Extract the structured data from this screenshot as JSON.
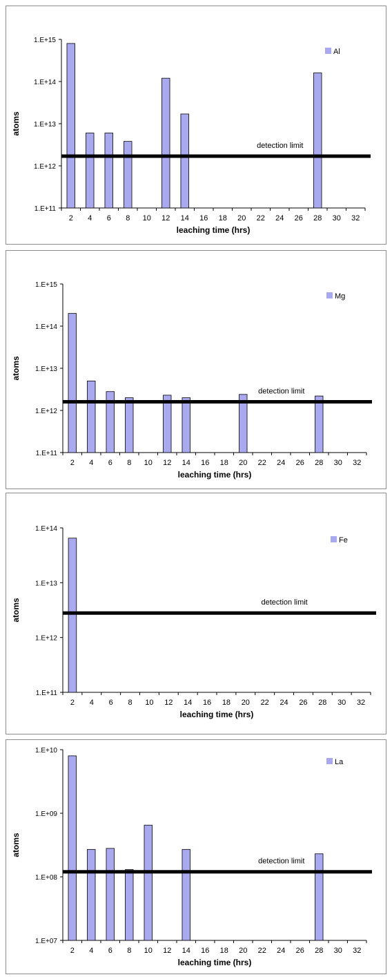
{
  "colors": {
    "bar_fill": "#a9a9f0",
    "bar_stroke": "#000000",
    "limit_line": "#000000",
    "frame": "#8c8c8c"
  },
  "chart_data": [
    {
      "type": "bar",
      "xlabel": "leaching time (hrs)",
      "ylabel": "atoms",
      "yscale": "log",
      "ylim": [
        100000000000.0,
        1000000000000000.0
      ],
      "yticks": [
        "1.E+11",
        "1.E+12",
        "1.E+13",
        "1.E+14",
        "1.E+15"
      ],
      "categories": [
        "2",
        "4",
        "6",
        "8",
        "10",
        "12",
        "14",
        "16",
        "18",
        "20",
        "22",
        "24",
        "26",
        "28",
        "30",
        "32"
      ],
      "series": [
        {
          "name": "Al",
          "values": [
            800000000000000.0,
            6000000000000.0,
            6000000000000.0,
            3800000000000.0,
            null,
            120000000000000.0,
            17000000000000.0,
            null,
            null,
            null,
            null,
            null,
            null,
            160000000000000.0,
            null,
            null
          ]
        }
      ],
      "detection_limit": {
        "label": "detection limit",
        "value": 1700000000000.0
      },
      "legend": "top-right",
      "grid": false
    },
    {
      "type": "bar",
      "xlabel": "leaching time (hrs)",
      "ylabel": "atoms",
      "yscale": "log",
      "ylim": [
        100000000000.0,
        1000000000000000.0
      ],
      "yticks": [
        "1.E+11",
        "1.E+12",
        "1.E+13",
        "1.E+14",
        "1.E+15"
      ],
      "categories": [
        "2",
        "4",
        "6",
        "8",
        "10",
        "12",
        "14",
        "16",
        "18",
        "20",
        "22",
        "24",
        "26",
        "28",
        "30",
        "32"
      ],
      "series": [
        {
          "name": "Mg",
          "values": [
            200000000000000.0,
            5000000000000.0,
            2800000000000.0,
            2000000000000.0,
            null,
            2300000000000.0,
            2000000000000.0,
            null,
            null,
            2400000000000.0,
            null,
            null,
            null,
            2200000000000.0,
            null,
            null
          ]
        }
      ],
      "detection_limit": {
        "label": "detection limit",
        "value": 1600000000000.0
      },
      "legend": "top-right",
      "grid": false
    },
    {
      "type": "bar",
      "xlabel": "leaching time (hrs)",
      "ylabel": "atoms",
      "yscale": "log",
      "ylim": [
        100000000000.0,
        100000000000000.0
      ],
      "yticks": [
        "1.E+11",
        "1.E+12",
        "1.E+13",
        "1.E+14"
      ],
      "categories": [
        "2",
        "4",
        "6",
        "8",
        "10",
        "12",
        "14",
        "16",
        "18",
        "20",
        "22",
        "24",
        "26",
        "28",
        "30",
        "32"
      ],
      "series": [
        {
          "name": "Fe",
          "values": [
            65000000000000.0,
            null,
            null,
            null,
            null,
            null,
            null,
            null,
            null,
            null,
            null,
            null,
            null,
            null,
            null,
            null
          ]
        }
      ],
      "detection_limit": {
        "label": "detection limit",
        "value": 2800000000000.0
      },
      "legend": "top-right",
      "grid": false
    },
    {
      "type": "bar",
      "xlabel": "leaching time (hrs)",
      "ylabel": "atoms",
      "yscale": "log",
      "ylim": [
        10000000.0,
        10000000000.0
      ],
      "yticks": [
        "1.E+07",
        "1.E+08",
        "1.E+09",
        "1.E+10"
      ],
      "categories": [
        "2",
        "4",
        "6",
        "8",
        "10",
        "12",
        "14",
        "16",
        "18",
        "20",
        "22",
        "24",
        "26",
        "28",
        "30",
        "32"
      ],
      "series": [
        {
          "name": "La",
          "values": [
            8000000000.0,
            270000000.0,
            280000000.0,
            130000000.0,
            650000000.0,
            null,
            270000000.0,
            null,
            null,
            null,
            null,
            null,
            null,
            230000000.0,
            null,
            null
          ]
        }
      ],
      "detection_limit": {
        "label": "detection limit",
        "value": 120000000.0
      },
      "legend": "top-right",
      "grid": false
    }
  ]
}
